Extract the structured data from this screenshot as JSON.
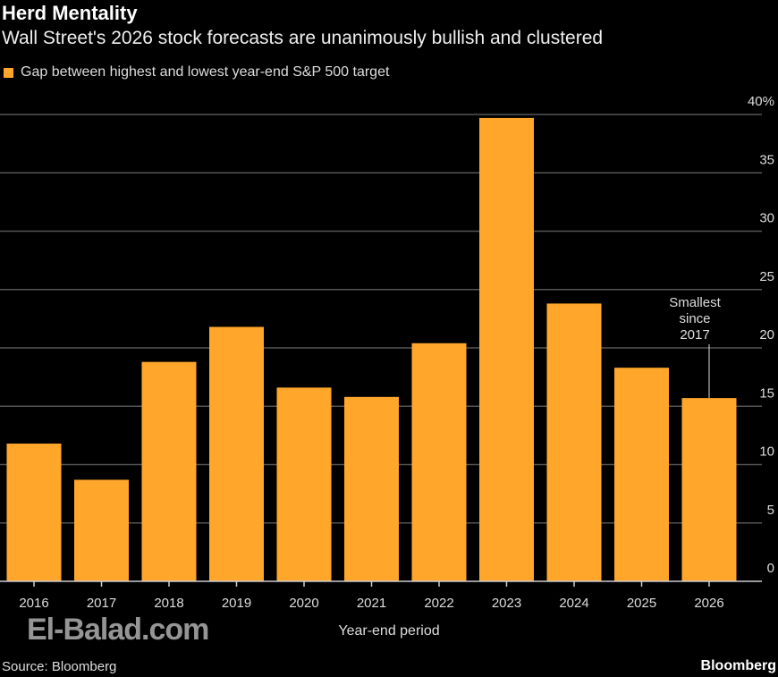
{
  "title": "Herd Mentality",
  "subtitle": "Wall Street's 2026 stock forecasts are unanimously bullish and clustered",
  "source": "Source: Bloomberg",
  "brand": "Bloomberg",
  "watermark": "El-Balad.com",
  "chart_data": {
    "type": "bar",
    "categories": [
      "2016",
      "2017",
      "2018",
      "2019",
      "2020",
      "2021",
      "2022",
      "2023",
      "2024",
      "2025",
      "2026"
    ],
    "series": [
      {
        "name": "Gap between highest and lowest year-end S&P 500 target",
        "values": [
          11.8,
          8.7,
          18.8,
          21.8,
          16.6,
          15.8,
          20.4,
          39.7,
          23.8,
          18.3,
          15.7
        ],
        "color": "#ffa62b"
      }
    ],
    "xlabel": "Year-end period",
    "ylabel": "",
    "ylim": [
      0,
      40
    ],
    "yticks": [
      "0",
      "5",
      "10",
      "15",
      "20",
      "25",
      "30",
      "35",
      "40%"
    ],
    "grid": true,
    "legend": "top-left",
    "annotation": {
      "category": "2026",
      "lines": [
        "Smallest",
        "since",
        "2017"
      ]
    }
  }
}
